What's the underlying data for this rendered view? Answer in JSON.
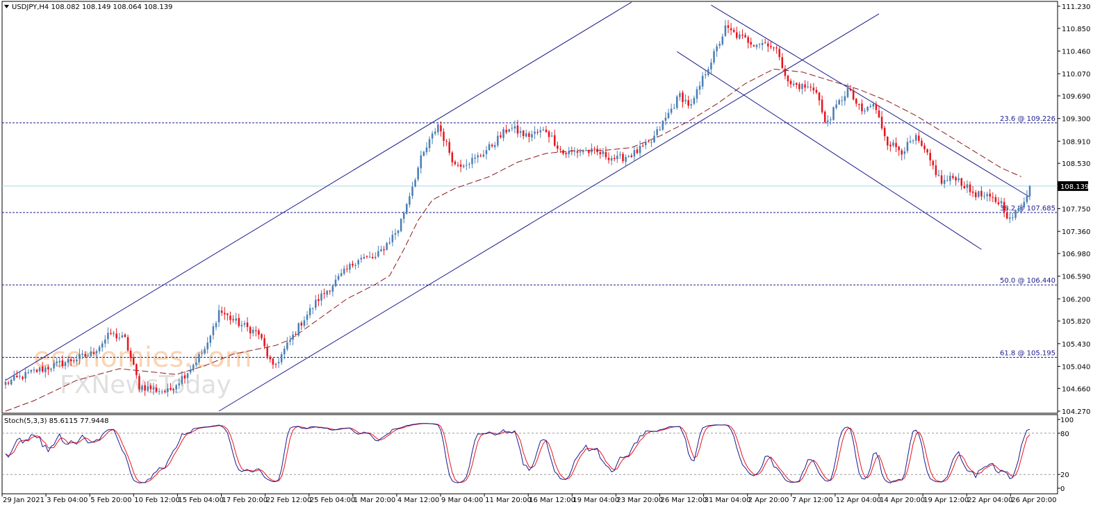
{
  "header": {
    "symbol_line": "USDJPY,H4  108.082 108.149 108.064 108.139",
    "stoch_line": "Stoch(5,3,3) 85.6115 77.9448"
  },
  "watermark": {
    "line1": "economies.com",
    "line2": "FXNewsToday"
  },
  "colors": {
    "bull": "#4a7fb5",
    "bear": "#e8141c",
    "channel": "#1a1a8c",
    "fib": "#1a1a8c",
    "ma": "#8b1a1a",
    "current": "#a8d4e8",
    "stoch_main": "#1a1a8c",
    "stoch_signal": "#e8141c"
  },
  "chart_data": [
    {
      "type": "candlestick",
      "symbol": "USDJPY",
      "timeframe": "H4",
      "ylim": [
        104.27,
        111.23
      ],
      "y_ticks": [
        111.23,
        110.85,
        110.46,
        110.07,
        109.69,
        109.3,
        108.91,
        108.53,
        108.14,
        107.75,
        107.36,
        106.98,
        106.59,
        106.2,
        105.82,
        105.43,
        105.04,
        104.66,
        104.27
      ],
      "y_tick_labels": [
        "111.230",
        "110.850",
        "110.460",
        "110.070",
        "109.690",
        "109.300",
        "108.910",
        "108.530",
        "108.139",
        "107.750",
        "107.360",
        "106.980",
        "106.590",
        "106.200",
        "105.820",
        "105.430",
        "105.040",
        "104.660",
        "104.270"
      ],
      "x_labels": [
        "29 Jan 2021",
        "3 Feb 04:00",
        "5 Feb 20:00",
        "10 Feb 12:00",
        "15 Feb 04:00",
        "17 Feb 20:00",
        "22 Feb 12:00",
        "25 Feb 04:00",
        "1 Mar 20:00",
        "4 Mar 12:00",
        "9 Mar 04:00",
        "11 Mar 20:00",
        "16 Mar 12:00",
        "19 Mar 04:00",
        "23 Mar 20:00",
        "26 Mar 12:00",
        "31 Mar 04:00",
        "2 Apr 20:00",
        "7 Apr 12:00",
        "12 Apr 04:00",
        "14 Apr 20:00",
        "19 Apr 12:00",
        "22 Apr 04:00",
        "26 Apr 20:00"
      ],
      "current_price": 108.139,
      "current_price_label": "108.139",
      "fib_levels": [
        {
          "label": "23.6 @ 109.226",
          "value": 109.226
        },
        {
          "label": "38.2 @ 107.685",
          "value": 107.685
        },
        {
          "label": "50.0 @ 106.440",
          "value": 106.44
        },
        {
          "label": "61.8 @ 105.195",
          "value": 105.195
        }
      ],
      "close_anchors": [
        [
          0,
          104.75
        ],
        [
          10,
          104.95
        ],
        [
          20,
          105.1
        ],
        [
          30,
          105.25
        ],
        [
          37,
          105.6
        ],
        [
          42,
          105.5
        ],
        [
          47,
          104.7
        ],
        [
          57,
          104.6
        ],
        [
          64,
          104.95
        ],
        [
          71,
          105.4
        ],
        [
          75,
          106.0
        ],
        [
          81,
          105.8
        ],
        [
          89,
          105.6
        ],
        [
          94,
          105.0
        ],
        [
          99,
          105.4
        ],
        [
          104,
          105.8
        ],
        [
          110,
          106.2
        ],
        [
          118,
          106.6
        ],
        [
          124,
          106.9
        ],
        [
          130,
          106.9
        ],
        [
          138,
          107.4
        ],
        [
          142,
          108.0
        ],
        [
          146,
          108.6
        ],
        [
          152,
          109.2
        ],
        [
          158,
          108.5
        ],
        [
          165,
          108.6
        ],
        [
          170,
          108.8
        ],
        [
          177,
          109.15
        ],
        [
          183,
          109.0
        ],
        [
          190,
          109.1
        ],
        [
          196,
          108.7
        ],
        [
          203,
          108.75
        ],
        [
          209,
          108.7
        ],
        [
          215,
          108.6
        ],
        [
          221,
          108.7
        ],
        [
          227,
          108.9
        ],
        [
          232,
          109.3
        ],
        [
          237,
          109.7
        ],
        [
          241,
          109.5
        ],
        [
          246,
          110.1
        ],
        [
          250,
          110.5
        ],
        [
          253,
          110.85
        ],
        [
          258,
          110.7
        ],
        [
          263,
          110.6
        ],
        [
          268,
          110.6
        ],
        [
          272,
          110.4
        ],
        [
          275,
          109.9
        ],
        [
          280,
          109.85
        ],
        [
          285,
          109.8
        ],
        [
          288,
          109.2
        ],
        [
          292,
          109.5
        ],
        [
          296,
          109.8
        ],
        [
          301,
          109.4
        ],
        [
          305,
          109.55
        ],
        [
          310,
          108.9
        ],
        [
          315,
          108.75
        ],
        [
          320,
          108.95
        ],
        [
          324,
          108.65
        ],
        [
          329,
          108.2
        ],
        [
          334,
          108.3
        ],
        [
          339,
          108.05
        ],
        [
          344,
          107.95
        ],
        [
          350,
          107.85
        ],
        [
          353,
          107.55
        ],
        [
          357,
          107.8
        ],
        [
          360,
          108.14
        ]
      ],
      "ma_points": [
        [
          0,
          104.27
        ],
        [
          10,
          104.45
        ],
        [
          25,
          104.8
        ],
        [
          40,
          105.0
        ],
        [
          50,
          104.95
        ],
        [
          60,
          104.9
        ],
        [
          70,
          105.05
        ],
        [
          80,
          105.25
        ],
        [
          90,
          105.35
        ],
        [
          95,
          105.4
        ],
        [
          100,
          105.5
        ],
        [
          110,
          105.85
        ],
        [
          120,
          106.2
        ],
        [
          130,
          106.45
        ],
        [
          135,
          106.6
        ],
        [
          140,
          107.05
        ],
        [
          145,
          107.55
        ],
        [
          150,
          107.9
        ],
        [
          158,
          108.1
        ],
        [
          170,
          108.3
        ],
        [
          180,
          108.55
        ],
        [
          190,
          108.7
        ],
        [
          200,
          108.75
        ],
        [
          210,
          108.75
        ],
        [
          220,
          108.8
        ],
        [
          230,
          109.0
        ],
        [
          240,
          109.25
        ],
        [
          250,
          109.55
        ],
        [
          260,
          109.9
        ],
        [
          270,
          110.15
        ],
        [
          280,
          110.1
        ],
        [
          290,
          109.95
        ],
        [
          300,
          109.8
        ],
        [
          310,
          109.6
        ],
        [
          320,
          109.35
        ],
        [
          330,
          109.05
        ],
        [
          340,
          108.75
        ],
        [
          350,
          108.45
        ],
        [
          357,
          108.3
        ]
      ],
      "up_channel": {
        "upper": [
          [
            0,
            104.8
          ],
          [
            220,
            111.3
          ]
        ],
        "lower": [
          [
            75,
            104.27
          ],
          [
            307,
            111.1
          ]
        ]
      },
      "down_channel": {
        "upper": [
          [
            248,
            111.25
          ],
          [
            360,
            107.95
          ]
        ],
        "lower": [
          [
            236,
            110.45
          ],
          [
            343,
            107.05
          ]
        ]
      }
    },
    {
      "type": "line",
      "name": "Stoch(5,3,3)",
      "ylim": [
        0,
        100
      ],
      "y_ticks": [
        100,
        80,
        20,
        0
      ],
      "y_tick_labels": [
        "100",
        "80",
        "20",
        "0"
      ],
      "levels": [
        80,
        20
      ],
      "main_value": 85.6115,
      "signal_value": 77.9448
    }
  ]
}
